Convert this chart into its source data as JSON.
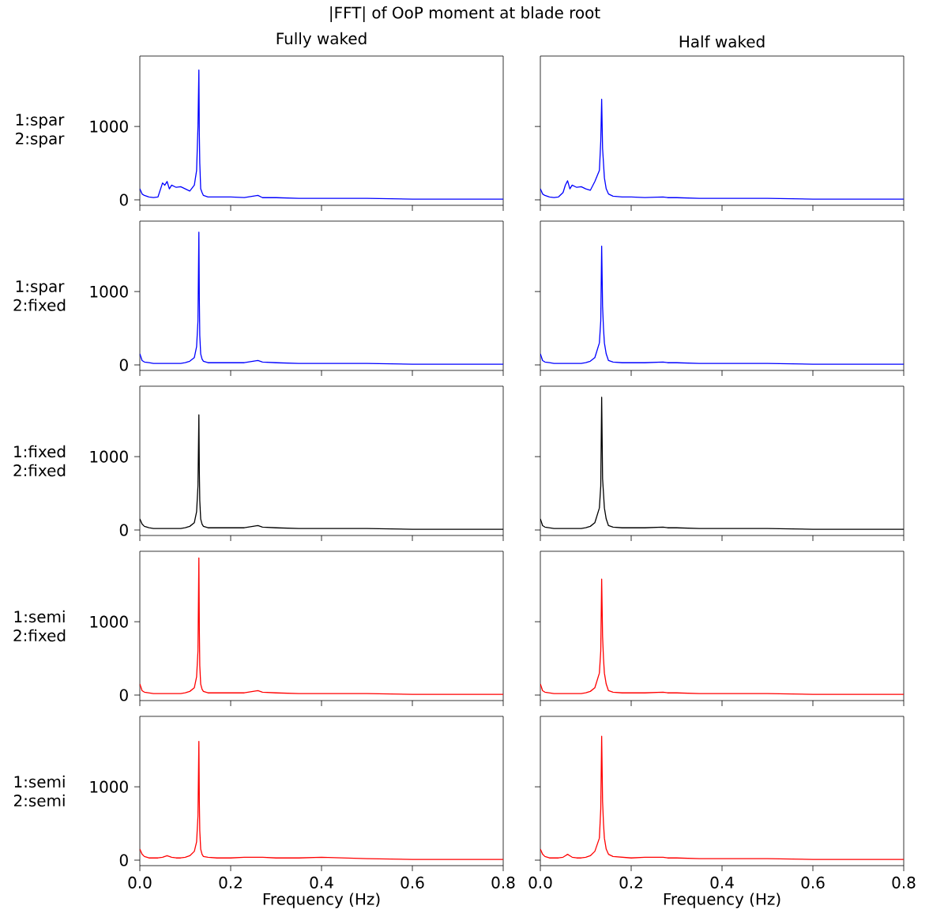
{
  "chart_data": [
    {
      "type": "line",
      "title": "|FFT| of OoP moment at blade root",
      "subtitle": "Fully waked",
      "ylabel": "1:spar 2:spar",
      "tick_labels": "y",
      "xlim": [
        0,
        0.8
      ],
      "ylim": [
        -75,
        1960
      ],
      "xticks": [
        0,
        0.2,
        0.4,
        0.6,
        0.8
      ],
      "yticks": [
        0,
        1000
      ],
      "x": [
        0,
        0.005,
        0.01,
        0.02,
        0.03,
        0.04,
        0.05,
        0.055,
        0.06,
        0.065,
        0.07,
        0.08,
        0.09,
        0.1,
        0.11,
        0.12,
        0.125,
        0.128,
        0.13,
        0.131,
        0.132,
        0.134,
        0.137,
        0.14,
        0.15,
        0.17,
        0.2,
        0.23,
        0.26,
        0.27,
        0.3,
        0.35,
        0.4,
        0.5,
        0.6,
        0.7,
        0.8
      ],
      "series": [
        {
          "color": "#0000ff",
          "values": [
            150,
            80,
            60,
            40,
            30,
            40,
            230,
            200,
            250,
            150,
            200,
            170,
            180,
            150,
            120,
            200,
            400,
            1000,
            1770,
            900,
            500,
            150,
            100,
            60,
            40,
            40,
            40,
            30,
            60,
            30,
            30,
            20,
            20,
            20,
            10,
            10,
            10
          ]
        }
      ]
    },
    {
      "type": "line",
      "title": "Half waked",
      "tick_labels": false,
      "xlim": [
        0,
        0.8
      ],
      "ylim": [
        -75,
        1960
      ],
      "xticks": [
        0,
        0.2,
        0.4,
        0.6,
        0.8
      ],
      "yticks": [
        0,
        1000
      ],
      "x": [
        0,
        0.005,
        0.01,
        0.02,
        0.03,
        0.04,
        0.05,
        0.055,
        0.06,
        0.065,
        0.07,
        0.08,
        0.09,
        0.1,
        0.11,
        0.12,
        0.13,
        0.133,
        0.135,
        0.137,
        0.139,
        0.141,
        0.145,
        0.15,
        0.16,
        0.18,
        0.2,
        0.23,
        0.27,
        0.28,
        0.3,
        0.35,
        0.4,
        0.5,
        0.6,
        0.7,
        0.8
      ],
      "series": [
        {
          "color": "#0000ff",
          "values": [
            150,
            80,
            60,
            40,
            30,
            40,
            100,
            200,
            260,
            150,
            200,
            170,
            180,
            150,
            130,
            250,
            400,
            800,
            1370,
            700,
            500,
            300,
            150,
            80,
            50,
            40,
            40,
            30,
            40,
            30,
            30,
            20,
            20,
            20,
            10,
            10,
            10
          ]
        }
      ]
    },
    {
      "type": "line",
      "ylabel": "1:spar 2:fixed",
      "tick_labels": "y",
      "xlim": [
        0,
        0.8
      ],
      "ylim": [
        -75,
        1960
      ],
      "xticks": [
        0,
        0.2,
        0.4,
        0.6,
        0.8
      ],
      "yticks": [
        0,
        1000
      ],
      "x": [
        0,
        0.005,
        0.01,
        0.02,
        0.03,
        0.04,
        0.05,
        0.055,
        0.06,
        0.065,
        0.07,
        0.08,
        0.09,
        0.1,
        0.11,
        0.12,
        0.125,
        0.128,
        0.13,
        0.131,
        0.132,
        0.134,
        0.137,
        0.14,
        0.15,
        0.17,
        0.2,
        0.23,
        0.26,
        0.27,
        0.3,
        0.35,
        0.4,
        0.5,
        0.6,
        0.7,
        0.8
      ],
      "series": [
        {
          "color": "#0000ff",
          "values": [
            150,
            60,
            40,
            30,
            20,
            20,
            20,
            20,
            20,
            20,
            20,
            20,
            20,
            30,
            50,
            100,
            250,
            600,
            1810,
            900,
            400,
            150,
            80,
            50,
            30,
            30,
            30,
            30,
            60,
            40,
            30,
            20,
            20,
            20,
            10,
            10,
            10
          ]
        }
      ]
    },
    {
      "type": "line",
      "tick_labels": false,
      "xlim": [
        0,
        0.8
      ],
      "ylim": [
        -75,
        1960
      ],
      "xticks": [
        0,
        0.2,
        0.4,
        0.6,
        0.8
      ],
      "yticks": [
        0,
        1000
      ],
      "x": [
        0,
        0.005,
        0.01,
        0.02,
        0.03,
        0.04,
        0.05,
        0.055,
        0.06,
        0.065,
        0.07,
        0.08,
        0.09,
        0.1,
        0.11,
        0.12,
        0.13,
        0.133,
        0.135,
        0.137,
        0.139,
        0.141,
        0.145,
        0.15,
        0.16,
        0.18,
        0.2,
        0.23,
        0.27,
        0.28,
        0.3,
        0.35,
        0.4,
        0.5,
        0.6,
        0.7,
        0.8
      ],
      "series": [
        {
          "color": "#0000ff",
          "values": [
            150,
            60,
            40,
            30,
            20,
            20,
            20,
            20,
            20,
            20,
            20,
            20,
            20,
            30,
            50,
            100,
            300,
            600,
            1620,
            800,
            500,
            300,
            150,
            60,
            40,
            30,
            30,
            30,
            40,
            30,
            30,
            20,
            20,
            20,
            10,
            10,
            10
          ]
        }
      ]
    },
    {
      "type": "line",
      "ylabel": "1:fixed 2:fixed",
      "tick_labels": "y",
      "xlim": [
        0,
        0.8
      ],
      "ylim": [
        -75,
        1960
      ],
      "xticks": [
        0,
        0.2,
        0.4,
        0.6,
        0.8
      ],
      "yticks": [
        0,
        1000
      ],
      "x": [
        0,
        0.005,
        0.01,
        0.02,
        0.03,
        0.04,
        0.05,
        0.055,
        0.06,
        0.065,
        0.07,
        0.08,
        0.09,
        0.1,
        0.11,
        0.12,
        0.125,
        0.128,
        0.13,
        0.131,
        0.132,
        0.134,
        0.137,
        0.14,
        0.15,
        0.17,
        0.2,
        0.23,
        0.26,
        0.27,
        0.3,
        0.35,
        0.4,
        0.5,
        0.6,
        0.7,
        0.8
      ],
      "series": [
        {
          "color": "#000000",
          "values": [
            150,
            80,
            50,
            30,
            20,
            20,
            20,
            20,
            20,
            20,
            20,
            20,
            20,
            30,
            50,
            100,
            250,
            600,
            1570,
            800,
            400,
            150,
            80,
            50,
            30,
            30,
            30,
            30,
            60,
            40,
            30,
            20,
            20,
            20,
            10,
            10,
            10
          ]
        }
      ]
    },
    {
      "type": "line",
      "tick_labels": false,
      "xlim": [
        0,
        0.8
      ],
      "ylim": [
        -75,
        1960
      ],
      "xticks": [
        0,
        0.2,
        0.4,
        0.6,
        0.8
      ],
      "yticks": [
        0,
        1000
      ],
      "x": [
        0,
        0.005,
        0.01,
        0.02,
        0.03,
        0.04,
        0.05,
        0.055,
        0.06,
        0.065,
        0.07,
        0.08,
        0.09,
        0.1,
        0.11,
        0.12,
        0.13,
        0.133,
        0.135,
        0.137,
        0.139,
        0.141,
        0.145,
        0.15,
        0.16,
        0.18,
        0.2,
        0.23,
        0.27,
        0.28,
        0.3,
        0.35,
        0.4,
        0.5,
        0.6,
        0.7,
        0.8
      ],
      "series": [
        {
          "color": "#000000",
          "values": [
            150,
            60,
            40,
            30,
            20,
            20,
            20,
            20,
            20,
            20,
            20,
            20,
            20,
            30,
            50,
            100,
            300,
            600,
            1810,
            700,
            500,
            300,
            150,
            60,
            40,
            30,
            30,
            30,
            40,
            30,
            30,
            20,
            20,
            20,
            10,
            10,
            10
          ]
        }
      ]
    },
    {
      "type": "line",
      "ylabel": "1:semi 2:fixed",
      "tick_labels": "y",
      "xlim": [
        0,
        0.8
      ],
      "ylim": [
        -75,
        1960
      ],
      "xticks": [
        0,
        0.2,
        0.4,
        0.6,
        0.8
      ],
      "yticks": [
        0,
        1000
      ],
      "x": [
        0,
        0.005,
        0.01,
        0.02,
        0.03,
        0.04,
        0.05,
        0.055,
        0.06,
        0.065,
        0.07,
        0.08,
        0.09,
        0.1,
        0.11,
        0.12,
        0.125,
        0.128,
        0.13,
        0.131,
        0.132,
        0.134,
        0.137,
        0.14,
        0.15,
        0.17,
        0.2,
        0.23,
        0.26,
        0.27,
        0.3,
        0.35,
        0.4,
        0.5,
        0.6,
        0.7,
        0.8
      ],
      "series": [
        {
          "color": "#ff0000",
          "values": [
            150,
            60,
            40,
            30,
            20,
            20,
            20,
            20,
            20,
            20,
            20,
            20,
            20,
            30,
            50,
            100,
            250,
            600,
            1870,
            900,
            400,
            150,
            80,
            50,
            30,
            30,
            30,
            30,
            60,
            40,
            30,
            20,
            20,
            20,
            10,
            10,
            10
          ]
        }
      ]
    },
    {
      "type": "line",
      "tick_labels": false,
      "xlim": [
        0,
        0.8
      ],
      "ylim": [
        -75,
        1960
      ],
      "xticks": [
        0,
        0.2,
        0.4,
        0.6,
        0.8
      ],
      "yticks": [
        0,
        1000
      ],
      "x": [
        0,
        0.005,
        0.01,
        0.02,
        0.03,
        0.04,
        0.05,
        0.055,
        0.06,
        0.065,
        0.07,
        0.08,
        0.09,
        0.1,
        0.11,
        0.12,
        0.13,
        0.133,
        0.135,
        0.137,
        0.139,
        0.141,
        0.145,
        0.15,
        0.16,
        0.18,
        0.2,
        0.23,
        0.27,
        0.28,
        0.3,
        0.35,
        0.4,
        0.5,
        0.6,
        0.7,
        0.8
      ],
      "series": [
        {
          "color": "#ff0000",
          "values": [
            150,
            60,
            40,
            30,
            20,
            20,
            20,
            20,
            20,
            20,
            20,
            20,
            20,
            30,
            50,
            100,
            300,
            600,
            1580,
            800,
            500,
            300,
            150,
            60,
            40,
            30,
            30,
            30,
            40,
            30,
            30,
            20,
            20,
            20,
            10,
            10,
            10
          ]
        }
      ]
    },
    {
      "type": "line",
      "ylabel": "1:semi 2:semi",
      "xlabel": "Frequency (Hz)",
      "xlim": [
        0,
        0.8
      ],
      "ylim": [
        -75,
        1960
      ],
      "xticks": [
        {
          "value": 0,
          "label": "0.0"
        },
        {
          "value": 0.2,
          "label": "0.2"
        },
        {
          "value": 0.4,
          "label": "0.4"
        },
        {
          "value": 0.6,
          "label": "0.6"
        },
        {
          "value": 0.8,
          "label": "0.8"
        }
      ],
      "yticks": [
        0,
        1000
      ],
      "x": [
        0,
        0.005,
        0.01,
        0.02,
        0.03,
        0.04,
        0.05,
        0.055,
        0.06,
        0.065,
        0.07,
        0.08,
        0.09,
        0.1,
        0.11,
        0.12,
        0.125,
        0.128,
        0.13,
        0.131,
        0.132,
        0.134,
        0.137,
        0.14,
        0.15,
        0.17,
        0.2,
        0.23,
        0.26,
        0.27,
        0.3,
        0.35,
        0.4,
        0.5,
        0.6,
        0.7,
        0.8
      ],
      "series": [
        {
          "color": "#ff0000",
          "values": [
            150,
            80,
            50,
            30,
            30,
            30,
            40,
            50,
            60,
            50,
            40,
            30,
            30,
            40,
            60,
            120,
            250,
            600,
            1620,
            800,
            400,
            150,
            80,
            50,
            40,
            30,
            30,
            40,
            40,
            40,
            30,
            30,
            40,
            20,
            10,
            10,
            10
          ]
        }
      ]
    },
    {
      "type": "line",
      "xlabel": "Frequency (Hz)",
      "tick_labels": "x",
      "xlim": [
        0,
        0.8
      ],
      "ylim": [
        -75,
        1960
      ],
      "xticks": [
        {
          "value": 0,
          "label": "0.0"
        },
        {
          "value": 0.2,
          "label": "0.2"
        },
        {
          "value": 0.4,
          "label": "0.4"
        },
        {
          "value": 0.6,
          "label": "0.6"
        },
        {
          "value": 0.8,
          "label": "0.8"
        }
      ],
      "yticks": [
        0,
        1000
      ],
      "x": [
        0,
        0.005,
        0.01,
        0.02,
        0.03,
        0.04,
        0.05,
        0.055,
        0.06,
        0.065,
        0.07,
        0.08,
        0.09,
        0.1,
        0.11,
        0.12,
        0.13,
        0.133,
        0.135,
        0.137,
        0.139,
        0.141,
        0.145,
        0.15,
        0.16,
        0.18,
        0.2,
        0.23,
        0.27,
        0.28,
        0.3,
        0.35,
        0.4,
        0.5,
        0.6,
        0.7,
        0.8
      ],
      "series": [
        {
          "color": "#ff0000",
          "values": [
            150,
            80,
            50,
            30,
            30,
            30,
            40,
            60,
            80,
            60,
            40,
            30,
            30,
            40,
            60,
            120,
            300,
            700,
            1690,
            800,
            500,
            300,
            150,
            80,
            50,
            40,
            30,
            40,
            40,
            30,
            30,
            20,
            20,
            20,
            10,
            10,
            10
          ]
        }
      ]
    }
  ]
}
